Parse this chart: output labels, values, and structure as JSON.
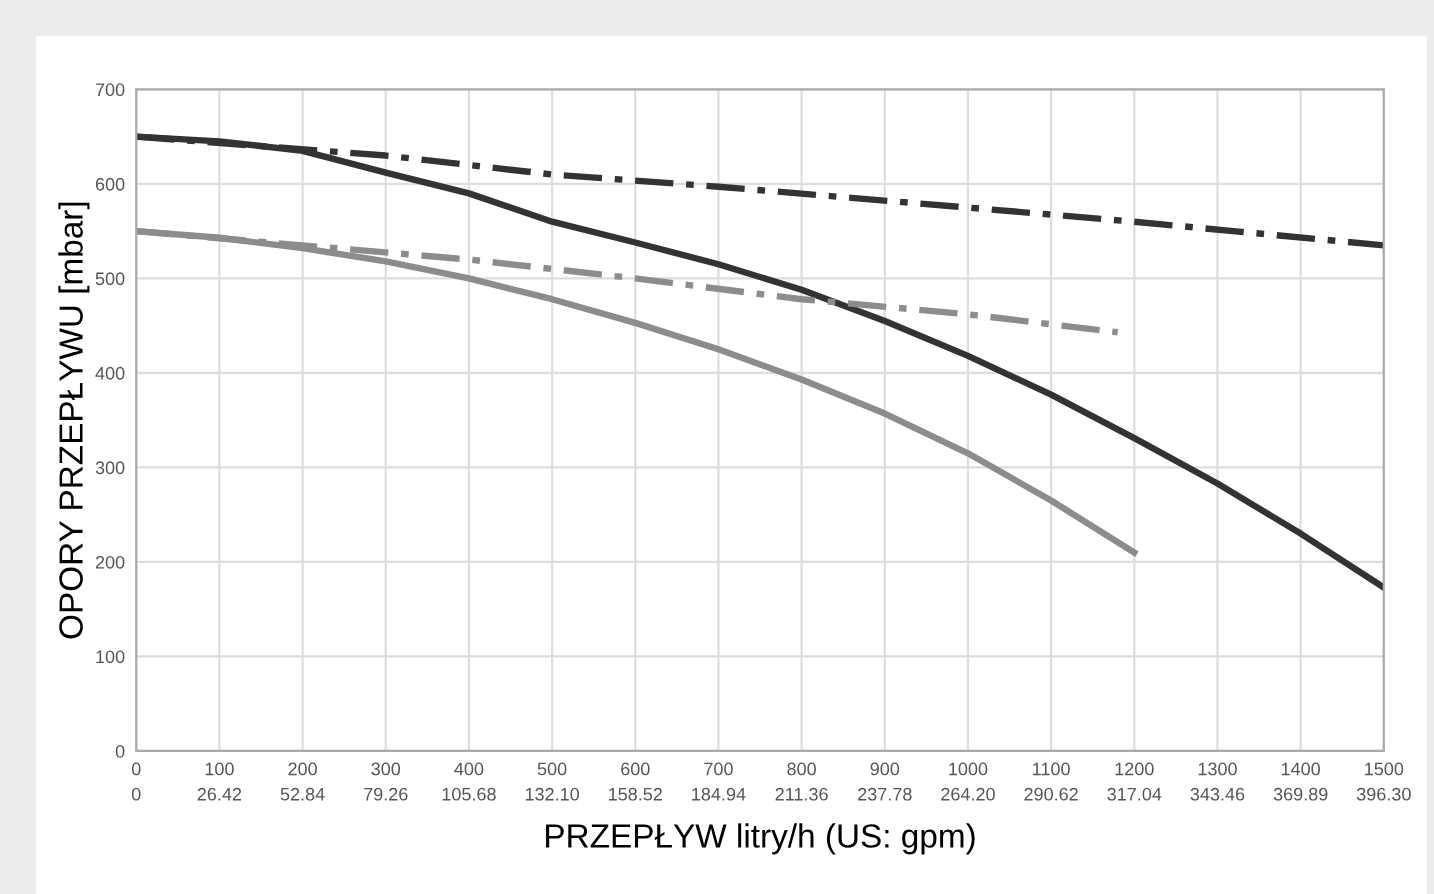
{
  "chart_data": {
    "type": "line",
    "xlabel": "PRZEPŁYW litry/h (US: gpm)",
    "ylabel": "OPORY PRZEPŁYWU [mbar]",
    "xlim": [
      0,
      1500
    ],
    "ylim": [
      0,
      700
    ],
    "xticks": [
      0,
      100,
      200,
      300,
      400,
      500,
      600,
      700,
      800,
      900,
      1000,
      1100,
      1200,
      1300,
      1400,
      1500
    ],
    "x2lim": [
      0,
      396.3
    ],
    "x2ticks": [
      0,
      26.42,
      52.84,
      79.26,
      105.68,
      {
        "value": 132.1,
        "label": "132.10"
      },
      158.52,
      184.94,
      211.36,
      237.78,
      {
        "value": 264.2,
        "label": "264.20"
      },
      290.62,
      317.04,
      343.46,
      369.89,
      {
        "value": 396.3,
        "label": "396.30"
      }
    ],
    "yticks": [
      0,
      100,
      200,
      300,
      400,
      500,
      600,
      700
    ],
    "grid": true,
    "series": [
      {
        "color": "#333333",
        "line_style": "dashed",
        "x": [
          0,
          300,
          500,
          700,
          1000,
          1200,
          1500
        ],
        "values": [
          650,
          630,
          610,
          597,
          575,
          560,
          535
        ]
      },
      {
        "color": "#333333",
        "line_style": "solid",
        "x": [
          0,
          100,
          200,
          300,
          400,
          500,
          600,
          700,
          800,
          900,
          1000,
          1100,
          1200,
          1300,
          1400,
          1500
        ],
        "values": [
          650,
          645,
          635,
          612,
          590,
          560,
          538,
          515,
          488,
          455,
          418,
          377,
          331,
          283,
          230,
          173
        ]
      },
      {
        "color": "#8c8c8c",
        "line_style": "dashed",
        "x": [
          0,
          200,
          400,
          600,
          800,
          1000,
          1180
        ],
        "values": [
          550,
          535,
          520,
          500,
          478,
          462,
          443
        ]
      },
      {
        "color": "#8c8c8c",
        "line_style": "solid",
        "x": [
          0,
          100,
          200,
          300,
          400,
          500,
          600,
          700,
          800,
          900,
          1000,
          1100,
          1200
        ],
        "values": [
          550,
          543,
          532,
          518,
          500,
          478,
          453,
          425,
          393,
          357,
          315,
          265,
          210
        ]
      }
    ]
  }
}
